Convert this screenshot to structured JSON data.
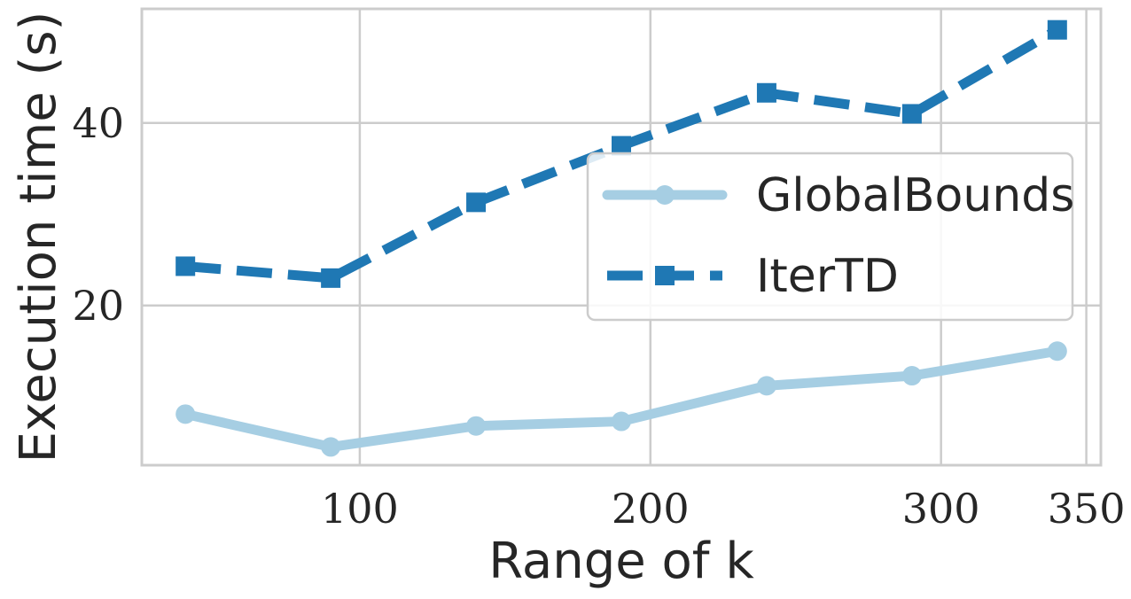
{
  "chart_data": {
    "type": "line",
    "xlabel": "Range of k",
    "ylabel": "Execution time (s)",
    "xlim": [
      25,
      355
    ],
    "ylim": [
      2.5,
      52.5
    ],
    "xticks": [
      100,
      200,
      300,
      350
    ],
    "yticks": [
      20,
      40
    ],
    "x": [
      40,
      90,
      140,
      190,
      240,
      290,
      340
    ],
    "grid": true,
    "legend_position": "center-right",
    "series": [
      {
        "name": "GlobalBounds",
        "values": [
          8.1,
          4.5,
          6.8,
          7.3,
          11.2,
          12.3,
          15.0
        ],
        "color": "#a6cee3",
        "linestyle": "solid",
        "marker": "circle"
      },
      {
        "name": "IterTD",
        "values": [
          24.3,
          23.0,
          31.3,
          37.5,
          43.3,
          41.0,
          50.2
        ],
        "color": "#1f78b4",
        "linestyle": "dashed",
        "marker": "square"
      }
    ]
  }
}
